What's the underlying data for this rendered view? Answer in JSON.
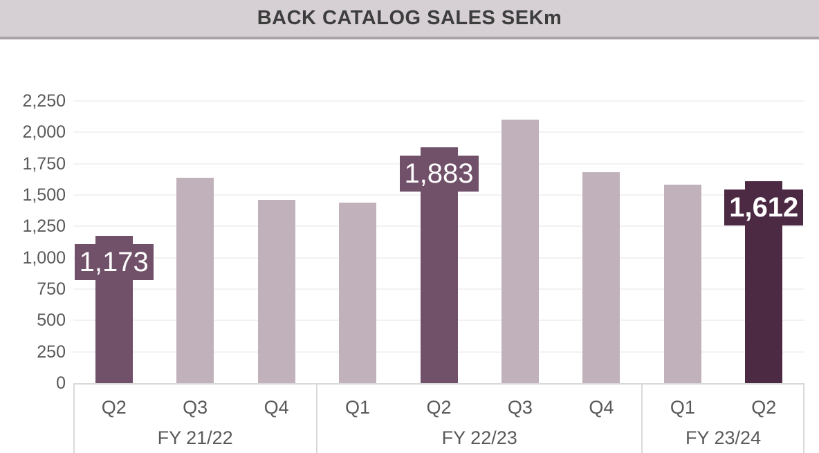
{
  "header": {
    "title": "BACK CATALOG SALES SEKm"
  },
  "chart_data": {
    "type": "bar",
    "title": "BACK CATALOG SALES SEKm",
    "unit": "SEKm",
    "xlabel": "",
    "ylabel": "",
    "ylim": [
      0,
      2250
    ],
    "ytick_step": 250,
    "ytick_labels": [
      "0",
      "250",
      "500",
      "750",
      "1,000",
      "1,250",
      "1,500",
      "1,750",
      "2,000",
      "2,250"
    ],
    "grid": "horizontal",
    "legend": "none",
    "groups": [
      {
        "label": "FY 21/22",
        "quarters": [
          "Q2",
          "Q3",
          "Q4"
        ]
      },
      {
        "label": "FY 22/23",
        "quarters": [
          "Q1",
          "Q2",
          "Q3",
          "Q4"
        ]
      },
      {
        "label": "FY 23/24",
        "quarters": [
          "Q1",
          "Q2"
        ]
      }
    ],
    "bars": [
      {
        "group": "FY 21/22",
        "quarter": "Q2",
        "value": 1173,
        "label": "1,173",
        "label_bold": false,
        "highlight": "medium"
      },
      {
        "group": "FY 21/22",
        "quarter": "Q3",
        "value": 1640,
        "highlight": "light"
      },
      {
        "group": "FY 21/22",
        "quarter": "Q4",
        "value": 1460,
        "highlight": "light"
      },
      {
        "group": "FY 22/23",
        "quarter": "Q1",
        "value": 1440,
        "highlight": "light"
      },
      {
        "group": "FY 22/23",
        "quarter": "Q2",
        "value": 1883,
        "label": "1,883",
        "label_bold": false,
        "highlight": "medium"
      },
      {
        "group": "FY 22/23",
        "quarter": "Q3",
        "value": 2100,
        "highlight": "light"
      },
      {
        "group": "FY 22/23",
        "quarter": "Q4",
        "value": 1680,
        "highlight": "light"
      },
      {
        "group": "FY 23/24",
        "quarter": "Q1",
        "value": 1580,
        "highlight": "light"
      },
      {
        "group": "FY 23/24",
        "quarter": "Q2",
        "value": 1612,
        "label": "1,612",
        "label_bold": true,
        "highlight": "dark"
      }
    ],
    "colors": {
      "light": "#c0b1bb",
      "medium": "#715069",
      "dark": "#4d2a44",
      "title_band_bg": "#d6d0d4",
      "title_band_border": "#a8a2a6",
      "title_text": "#3d3d3d",
      "axis_text": "#595959",
      "gridline": "#f4f1f3",
      "axis_box_border": "#d9d9d9",
      "label_text": "#ffffff"
    }
  }
}
